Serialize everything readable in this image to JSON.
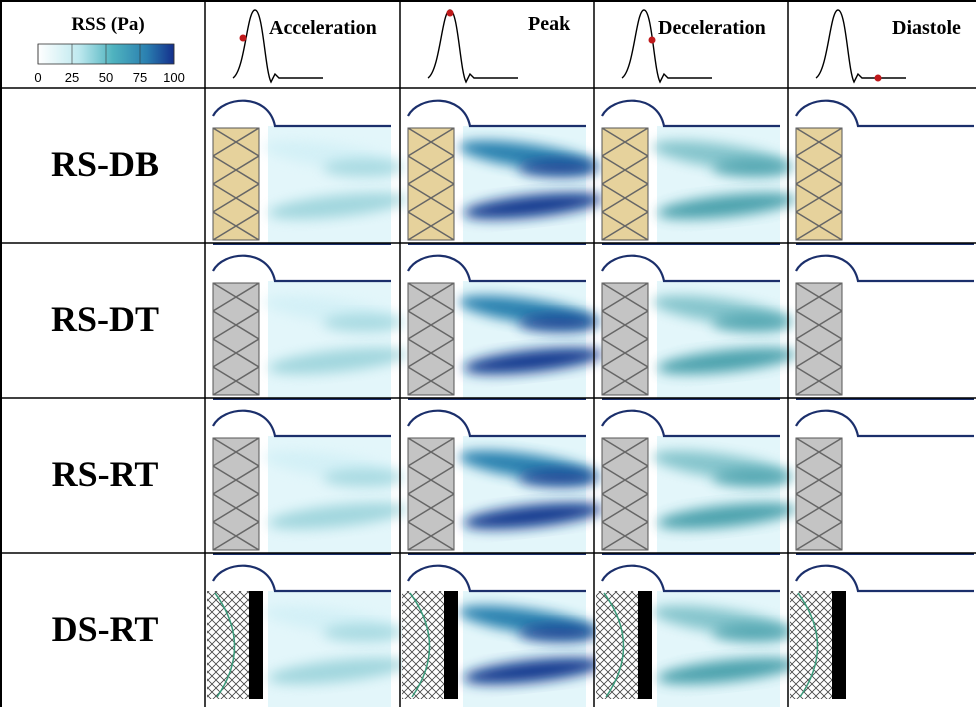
{
  "legend": {
    "title": "RSS (Pa)",
    "range": [
      0,
      100
    ],
    "ticks": [
      0,
      25,
      50,
      75,
      100
    ]
  },
  "columns": [
    "Acceleration",
    "Peak",
    "Deceleration",
    "Diastole"
  ],
  "rows": [
    "RS-DB",
    "RS-DT",
    "RS-RT",
    "DS-RT"
  ]
}
